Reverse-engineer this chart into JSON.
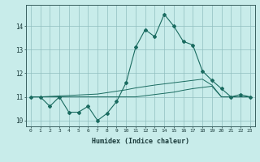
{
  "xlabel": "Humidex (Indice chaleur)",
  "background_color": "#c8ecea",
  "grid_color": "#90bfbf",
  "line_color": "#1a6b60",
  "x_values": [
    0,
    1,
    2,
    3,
    4,
    5,
    6,
    7,
    8,
    9,
    10,
    11,
    12,
    13,
    14,
    15,
    16,
    17,
    18,
    19,
    20,
    21,
    22,
    23
  ],
  "main_line": [
    11.0,
    11.0,
    10.6,
    11.0,
    10.35,
    10.35,
    10.6,
    10.0,
    10.3,
    10.8,
    11.6,
    13.1,
    13.85,
    13.55,
    14.5,
    14.0,
    13.35,
    13.2,
    12.1,
    11.7,
    11.35,
    11.0,
    11.1,
    11.0
  ],
  "envelope_upper": [
    11.0,
    11.0,
    11.02,
    11.04,
    11.06,
    11.08,
    11.1,
    11.12,
    11.18,
    11.24,
    11.3,
    11.38,
    11.44,
    11.5,
    11.55,
    11.6,
    11.65,
    11.7,
    11.75,
    11.5,
    11.0,
    11.0,
    11.0,
    11.0
  ],
  "envelope_lower": [
    11.0,
    11.0,
    11.0,
    11.0,
    11.0,
    11.0,
    11.0,
    11.0,
    11.0,
    11.0,
    11.0,
    11.0,
    11.05,
    11.1,
    11.15,
    11.2,
    11.28,
    11.35,
    11.4,
    11.45,
    11.0,
    11.0,
    11.0,
    11.0
  ],
  "ylim": [
    9.75,
    14.9
  ],
  "yticks": [
    10,
    11,
    12,
    13,
    14
  ],
  "xlim": [
    -0.5,
    23.5
  ],
  "figsize": [
    3.2,
    2.0
  ],
  "dpi": 100
}
